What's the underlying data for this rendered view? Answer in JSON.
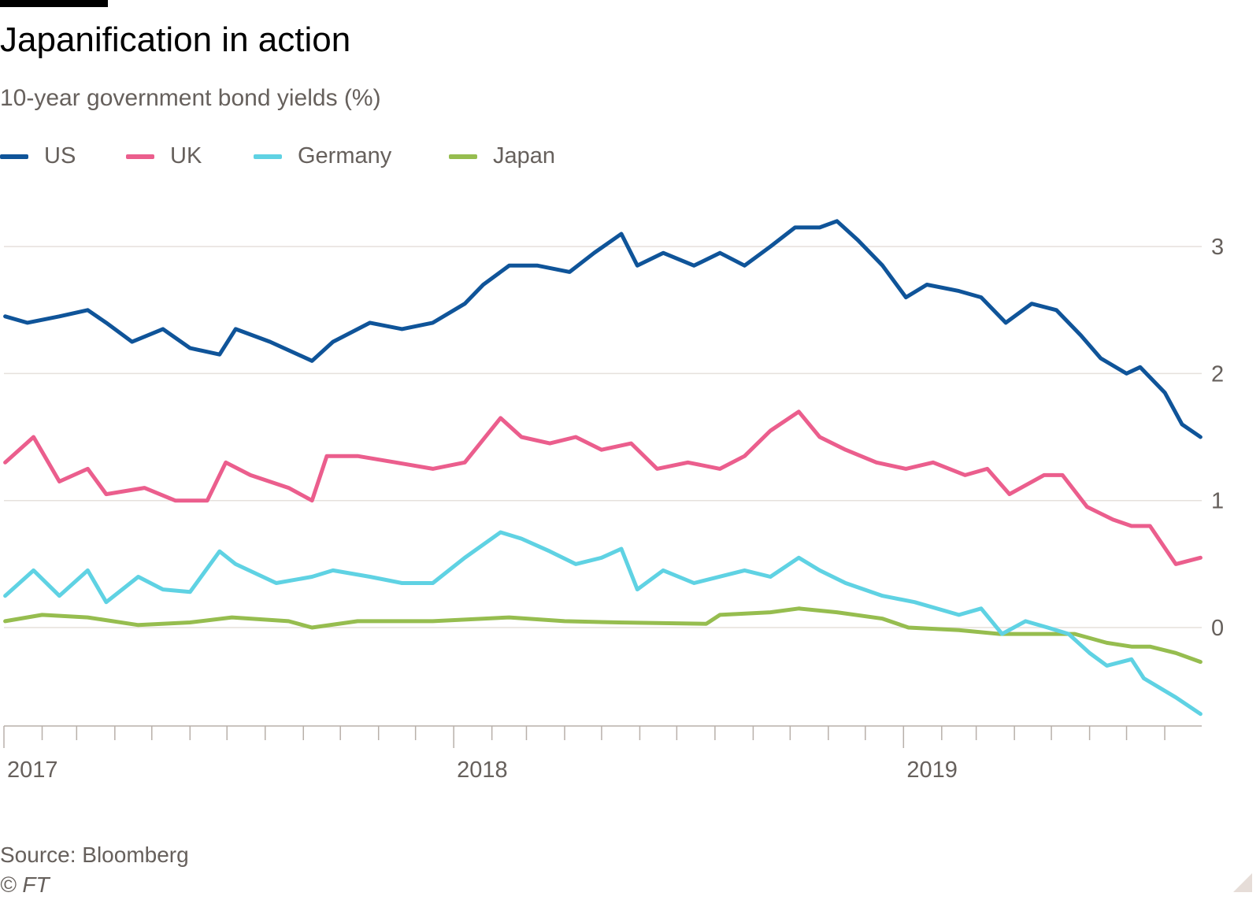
{
  "title": "Japanification in action",
  "subtitle": "10-year government bond yields (%)",
  "source": "Source: Bloomberg",
  "copyright": "© FT",
  "colors": {
    "US": "#0f5499",
    "UK": "#eb5e8d",
    "Germany": "#5fd2e3",
    "Japan": "#96bd4f",
    "grid": "#e6e1dc",
    "axis": "#b8b0aa"
  },
  "chart_data": {
    "type": "line",
    "title": "Japanification in action",
    "subtitle": "10-year government bond yields (%)",
    "xlabel": "",
    "ylabel": "",
    "xlim": [
      "2017-01-01",
      "2019-08-31"
    ],
    "ylim": [
      -0.8,
      3.5
    ],
    "y_ticks": [
      0,
      1,
      2,
      3
    ],
    "y_tick_labels": [
      "0",
      "1",
      "2",
      "3"
    ],
    "x_tick_labels": [
      {
        "date": "2017-01-01",
        "label": "2017"
      },
      {
        "date": "2018-01-01",
        "label": "2018"
      },
      {
        "date": "2019-01-01",
        "label": "2019"
      }
    ],
    "grid": true,
    "y_axis_position": "right",
    "legend_position": "top-left",
    "series": [
      {
        "name": "US",
        "x": [
          "2017-01-02",
          "2017-01-20",
          "2017-02-15",
          "2017-03-10",
          "2017-03-25",
          "2017-04-15",
          "2017-05-10",
          "2017-06-01",
          "2017-06-25",
          "2017-07-08",
          "2017-08-05",
          "2017-09-08",
          "2017-09-25",
          "2017-10-25",
          "2017-11-20",
          "2017-12-15",
          "2018-01-10",
          "2018-01-25",
          "2018-02-15",
          "2018-03-10",
          "2018-04-05",
          "2018-04-25",
          "2018-05-17",
          "2018-05-30",
          "2018-06-20",
          "2018-07-15",
          "2018-08-05",
          "2018-08-25",
          "2018-09-15",
          "2018-10-05",
          "2018-10-25",
          "2018-11-08",
          "2018-11-25",
          "2018-12-15",
          "2019-01-03",
          "2019-01-20",
          "2019-02-15",
          "2019-03-05",
          "2019-03-25",
          "2019-04-15",
          "2019-05-05",
          "2019-05-25",
          "2019-06-10",
          "2019-07-01",
          "2019-07-12",
          "2019-08-01",
          "2019-08-15",
          "2019-08-30"
        ],
        "y": [
          2.45,
          2.4,
          2.45,
          2.5,
          2.4,
          2.25,
          2.35,
          2.2,
          2.15,
          2.35,
          2.25,
          2.1,
          2.25,
          2.4,
          2.35,
          2.4,
          2.55,
          2.7,
          2.85,
          2.85,
          2.8,
          2.95,
          3.1,
          2.85,
          2.95,
          2.85,
          2.95,
          2.85,
          3.0,
          3.15,
          3.15,
          3.2,
          3.05,
          2.85,
          2.6,
          2.7,
          2.65,
          2.6,
          2.4,
          2.55,
          2.5,
          2.3,
          2.12,
          2.0,
          2.05,
          1.85,
          1.6,
          1.5
        ]
      },
      {
        "name": "UK",
        "x": [
          "2017-01-02",
          "2017-01-25",
          "2017-02-15",
          "2017-03-10",
          "2017-03-25",
          "2017-04-25",
          "2017-05-20",
          "2017-06-15",
          "2017-06-30",
          "2017-07-20",
          "2017-08-20",
          "2017-09-08",
          "2017-09-20",
          "2017-10-15",
          "2017-11-15",
          "2017-12-15",
          "2018-01-10",
          "2018-02-08",
          "2018-02-25",
          "2018-03-20",
          "2018-04-10",
          "2018-05-01",
          "2018-05-25",
          "2018-06-15",
          "2018-07-10",
          "2018-08-05",
          "2018-08-25",
          "2018-09-15",
          "2018-10-08",
          "2018-10-25",
          "2018-11-15",
          "2018-12-10",
          "2019-01-03",
          "2019-01-25",
          "2019-02-20",
          "2019-03-10",
          "2019-03-28",
          "2019-04-25",
          "2019-05-10",
          "2019-05-30",
          "2019-06-20",
          "2019-07-05",
          "2019-07-20",
          "2019-08-10",
          "2019-08-30"
        ],
        "y": [
          1.3,
          1.5,
          1.15,
          1.25,
          1.05,
          1.1,
          1.0,
          1.0,
          1.3,
          1.2,
          1.1,
          1.0,
          1.35,
          1.35,
          1.3,
          1.25,
          1.3,
          1.65,
          1.5,
          1.45,
          1.5,
          1.4,
          1.45,
          1.25,
          1.3,
          1.25,
          1.35,
          1.55,
          1.7,
          1.5,
          1.4,
          1.3,
          1.25,
          1.3,
          1.2,
          1.25,
          1.05,
          1.2,
          1.2,
          0.95,
          0.85,
          0.8,
          0.8,
          0.5,
          0.55
        ]
      },
      {
        "name": "Germany",
        "x": [
          "2017-01-02",
          "2017-01-25",
          "2017-02-15",
          "2017-03-10",
          "2017-03-25",
          "2017-04-20",
          "2017-05-10",
          "2017-06-01",
          "2017-06-25",
          "2017-07-08",
          "2017-08-10",
          "2017-09-08",
          "2017-09-25",
          "2017-10-25",
          "2017-11-20",
          "2017-12-15",
          "2018-01-10",
          "2018-02-08",
          "2018-02-25",
          "2018-03-20",
          "2018-04-10",
          "2018-05-01",
          "2018-05-17",
          "2018-05-30",
          "2018-06-20",
          "2018-07-15",
          "2018-08-25",
          "2018-09-15",
          "2018-10-08",
          "2018-10-25",
          "2018-11-15",
          "2018-12-15",
          "2019-01-10",
          "2019-02-15",
          "2019-03-05",
          "2019-03-22",
          "2019-04-10",
          "2019-04-28",
          "2019-05-15",
          "2019-06-01",
          "2019-06-15",
          "2019-07-05",
          "2019-07-15",
          "2019-08-10",
          "2019-08-30"
        ],
        "y": [
          0.25,
          0.45,
          0.25,
          0.45,
          0.2,
          0.4,
          0.3,
          0.28,
          0.6,
          0.5,
          0.35,
          0.4,
          0.45,
          0.4,
          0.35,
          0.35,
          0.55,
          0.75,
          0.7,
          0.6,
          0.5,
          0.55,
          0.62,
          0.3,
          0.45,
          0.35,
          0.45,
          0.4,
          0.55,
          0.45,
          0.35,
          0.25,
          0.2,
          0.1,
          0.15,
          -0.05,
          0.05,
          0.0,
          -0.05,
          -0.2,
          -0.3,
          -0.25,
          -0.4,
          -0.55,
          -0.68
        ]
      },
      {
        "name": "Japan",
        "x": [
          "2017-01-02",
          "2017-02-01",
          "2017-03-10",
          "2017-04-20",
          "2017-06-01",
          "2017-07-05",
          "2017-08-20",
          "2017-09-08",
          "2017-10-15",
          "2017-12-15",
          "2018-02-15",
          "2018-04-01",
          "2018-05-15",
          "2018-07-25",
          "2018-08-05",
          "2018-09-15",
          "2018-10-08",
          "2018-11-08",
          "2018-12-15",
          "2019-01-05",
          "2019-02-15",
          "2019-03-20",
          "2019-04-20",
          "2019-05-20",
          "2019-06-15",
          "2019-07-05",
          "2019-07-20",
          "2019-08-10",
          "2019-08-30"
        ],
        "y": [
          0.05,
          0.1,
          0.08,
          0.02,
          0.04,
          0.08,
          0.05,
          0.0,
          0.05,
          0.05,
          0.08,
          0.05,
          0.04,
          0.03,
          0.1,
          0.12,
          0.15,
          0.12,
          0.07,
          0.0,
          -0.02,
          -0.05,
          -0.05,
          -0.05,
          -0.12,
          -0.15,
          -0.15,
          -0.2,
          -0.27
        ]
      }
    ]
  }
}
